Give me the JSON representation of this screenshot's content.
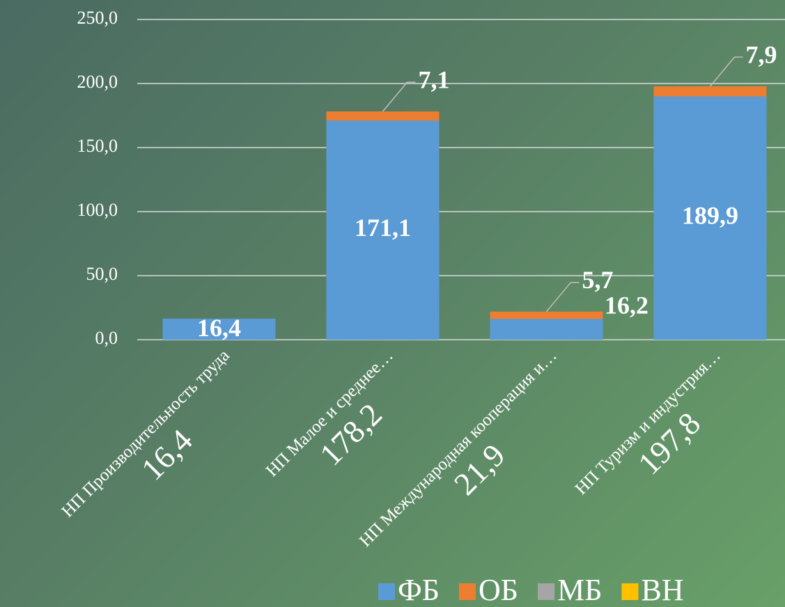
{
  "chart_data": {
    "type": "stacked_bar",
    "categories": [
      "НП Производительность труда",
      "НП Малое и среднее…",
      "НП Международная кооперация и…",
      "НП Туризм и индустрия…"
    ],
    "totals": [
      16.4,
      178.2,
      21.9,
      197.8
    ],
    "total_labels": [
      "16,4",
      "178,2",
      "21,9",
      "197,8"
    ],
    "series": [
      {
        "name": "ФБ",
        "color": "#5b9bd5",
        "values": [
          16.4,
          171.1,
          16.2,
          189.9
        ],
        "value_labels": [
          "16,4",
          "171,1",
          "16,2",
          "189,9"
        ]
      },
      {
        "name": "ОБ",
        "color": "#ed7d31",
        "values": [
          null,
          7.1,
          5.7,
          7.9
        ],
        "value_labels": [
          null,
          "7,1",
          "5,7",
          "7,9"
        ]
      },
      {
        "name": "МБ",
        "color": "#a5a5a5",
        "values": [
          null,
          null,
          null,
          null
        ]
      },
      {
        "name": "ВН",
        "color": "#ffc000",
        "values": [
          null,
          null,
          null,
          null
        ]
      }
    ],
    "ylim": [
      0,
      250
    ],
    "yticks": [
      {
        "value": 0,
        "label": "0,0"
      },
      {
        "value": 50,
        "label": "50,0"
      },
      {
        "value": 100,
        "label": "100,0"
      },
      {
        "value": 150,
        "label": "150,0"
      },
      {
        "value": 200,
        "label": "200,0"
      },
      {
        "value": 250,
        "label": "250,0"
      }
    ],
    "grid": true,
    "legend": "bottom-right"
  }
}
